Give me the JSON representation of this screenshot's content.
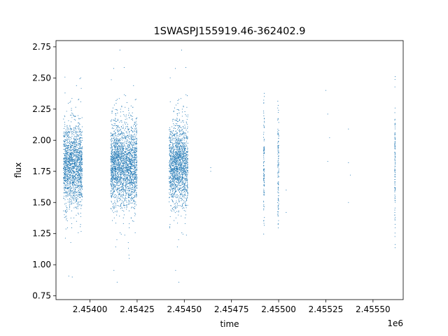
{
  "chart_data": {
    "type": "scatter",
    "title": "1SWASPJ155919.46-362402.9",
    "xlabel": "time",
    "ylabel": "flux",
    "x_offset_label": "1e6",
    "x_tick_labels": [
      "2.45400",
      "2.45425",
      "2.45450",
      "2.45475",
      "2.45500",
      "2.45525",
      "2.45550"
    ],
    "x_ticks": [
      2454000,
      2454250,
      2454500,
      2454750,
      2455000,
      2455250,
      2455500
    ],
    "y_ticks": [
      0.75,
      1.0,
      1.25,
      1.5,
      1.75,
      2.0,
      2.25,
      2.5,
      2.75
    ],
    "y_tick_labels": [
      "0.75",
      "1.00",
      "1.25",
      "1.50",
      "1.75",
      "2.00",
      "2.25",
      "2.50",
      "2.75"
    ],
    "xlim": [
      2453820,
      2455660
    ],
    "ylim": [
      0.72,
      2.8
    ],
    "marker_color": "#1f77b4",
    "grid": false,
    "series": [
      {
        "observing_seasons": [
          {
            "x_start": 2453860,
            "x_end": 2453960,
            "center": 1.8,
            "spread": 0.16,
            "density": "high"
          },
          {
            "x_start": 2454110,
            "x_end": 2454250,
            "center": 1.8,
            "spread": 0.16,
            "density": "high"
          },
          {
            "x_start": 2454420,
            "x_end": 2454520,
            "center": 1.8,
            "spread": 0.16,
            "density": "high"
          },
          {
            "x_start": 2454920,
            "x_end": 2454935,
            "center": 1.8,
            "spread": 0.25,
            "density": "low"
          },
          {
            "x_start": 2454995,
            "x_end": 2455015,
            "center": 1.8,
            "spread": 0.25,
            "density": "low"
          },
          {
            "x_start": 2455615,
            "x_end": 2455625,
            "center": 1.8,
            "spread": 0.25,
            "density": "low"
          }
        ],
        "sparse_points": [
          [
            2454640,
            1.78
          ],
          [
            2454640,
            1.75
          ],
          [
            2455040,
            1.6
          ],
          [
            2455040,
            1.42
          ],
          [
            2455250,
            2.4
          ],
          [
            2455260,
            2.21
          ],
          [
            2455260,
            1.83
          ],
          [
            2455270,
            2.02
          ],
          [
            2455370,
            2.09
          ],
          [
            2455370,
            1.82
          ],
          [
            2455370,
            1.5
          ],
          [
            2455380,
            1.72
          ]
        ]
      }
    ]
  }
}
